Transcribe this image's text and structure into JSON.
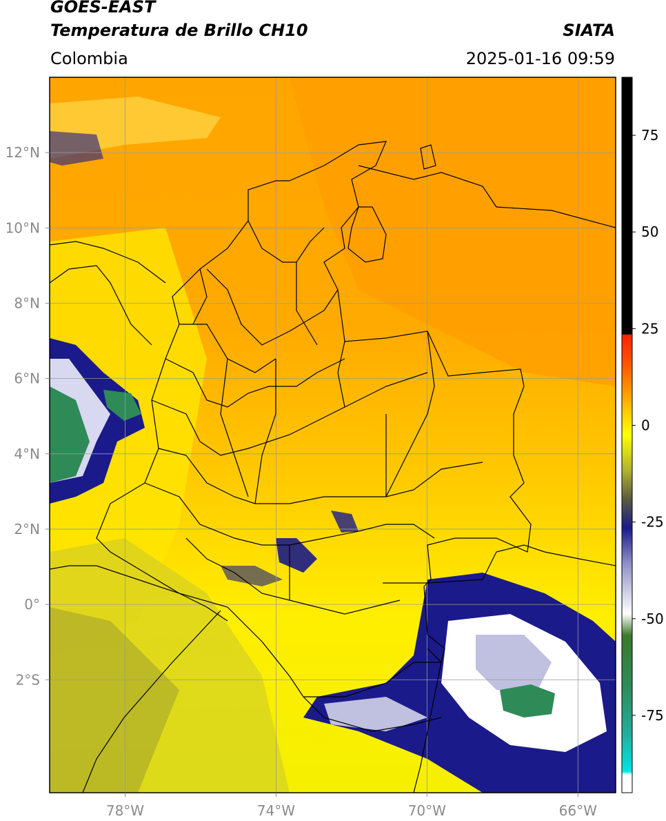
{
  "header": {
    "satellite": "GOES-EAST",
    "product": "Temperatura de Brillo CH10",
    "agency": "SIATA",
    "region": "Colombia",
    "timestamp": "2025-01-16 09:59"
  },
  "map": {
    "lon_range": [
      -80,
      -65
    ],
    "lat_range": [
      -5,
      14
    ],
    "lon_ticks": [
      {
        "value": -78,
        "label": "78°W"
      },
      {
        "value": -74,
        "label": "74°W"
      },
      {
        "value": -70,
        "label": "70°W"
      },
      {
        "value": -66,
        "label": "66°W"
      }
    ],
    "lat_ticks": [
      {
        "value": 12,
        "label": "12°N"
      },
      {
        "value": 10,
        "label": "10°N"
      },
      {
        "value": 8,
        "label": "8°N"
      },
      {
        "value": 6,
        "label": "6°N"
      },
      {
        "value": 4,
        "label": "4°N"
      },
      {
        "value": 2,
        "label": "2°N"
      },
      {
        "value": 0,
        "label": "0°"
      },
      {
        "value": -2,
        "label": "2°S"
      }
    ],
    "grid": true
  },
  "colorbar": {
    "range": [
      -95,
      90
    ],
    "ticks": [
      {
        "value": 75,
        "label": "75"
      },
      {
        "value": 50,
        "label": "50"
      },
      {
        "value": 25,
        "label": "25"
      },
      {
        "value": 0,
        "label": "0"
      },
      {
        "value": -25,
        "label": "-25"
      },
      {
        "value": -50,
        "label": "-50"
      },
      {
        "value": -75,
        "label": "-75"
      }
    ],
    "colors": {
      "black": "#000000",
      "red": "#ff2200",
      "orange": "#ff9900",
      "yellow": "#ffff00",
      "olive": "#8a8a2a",
      "navy": "#1a1a8a",
      "white": "#ffffff",
      "green": "#2e8b57",
      "cyan": "#00e5e5"
    }
  }
}
